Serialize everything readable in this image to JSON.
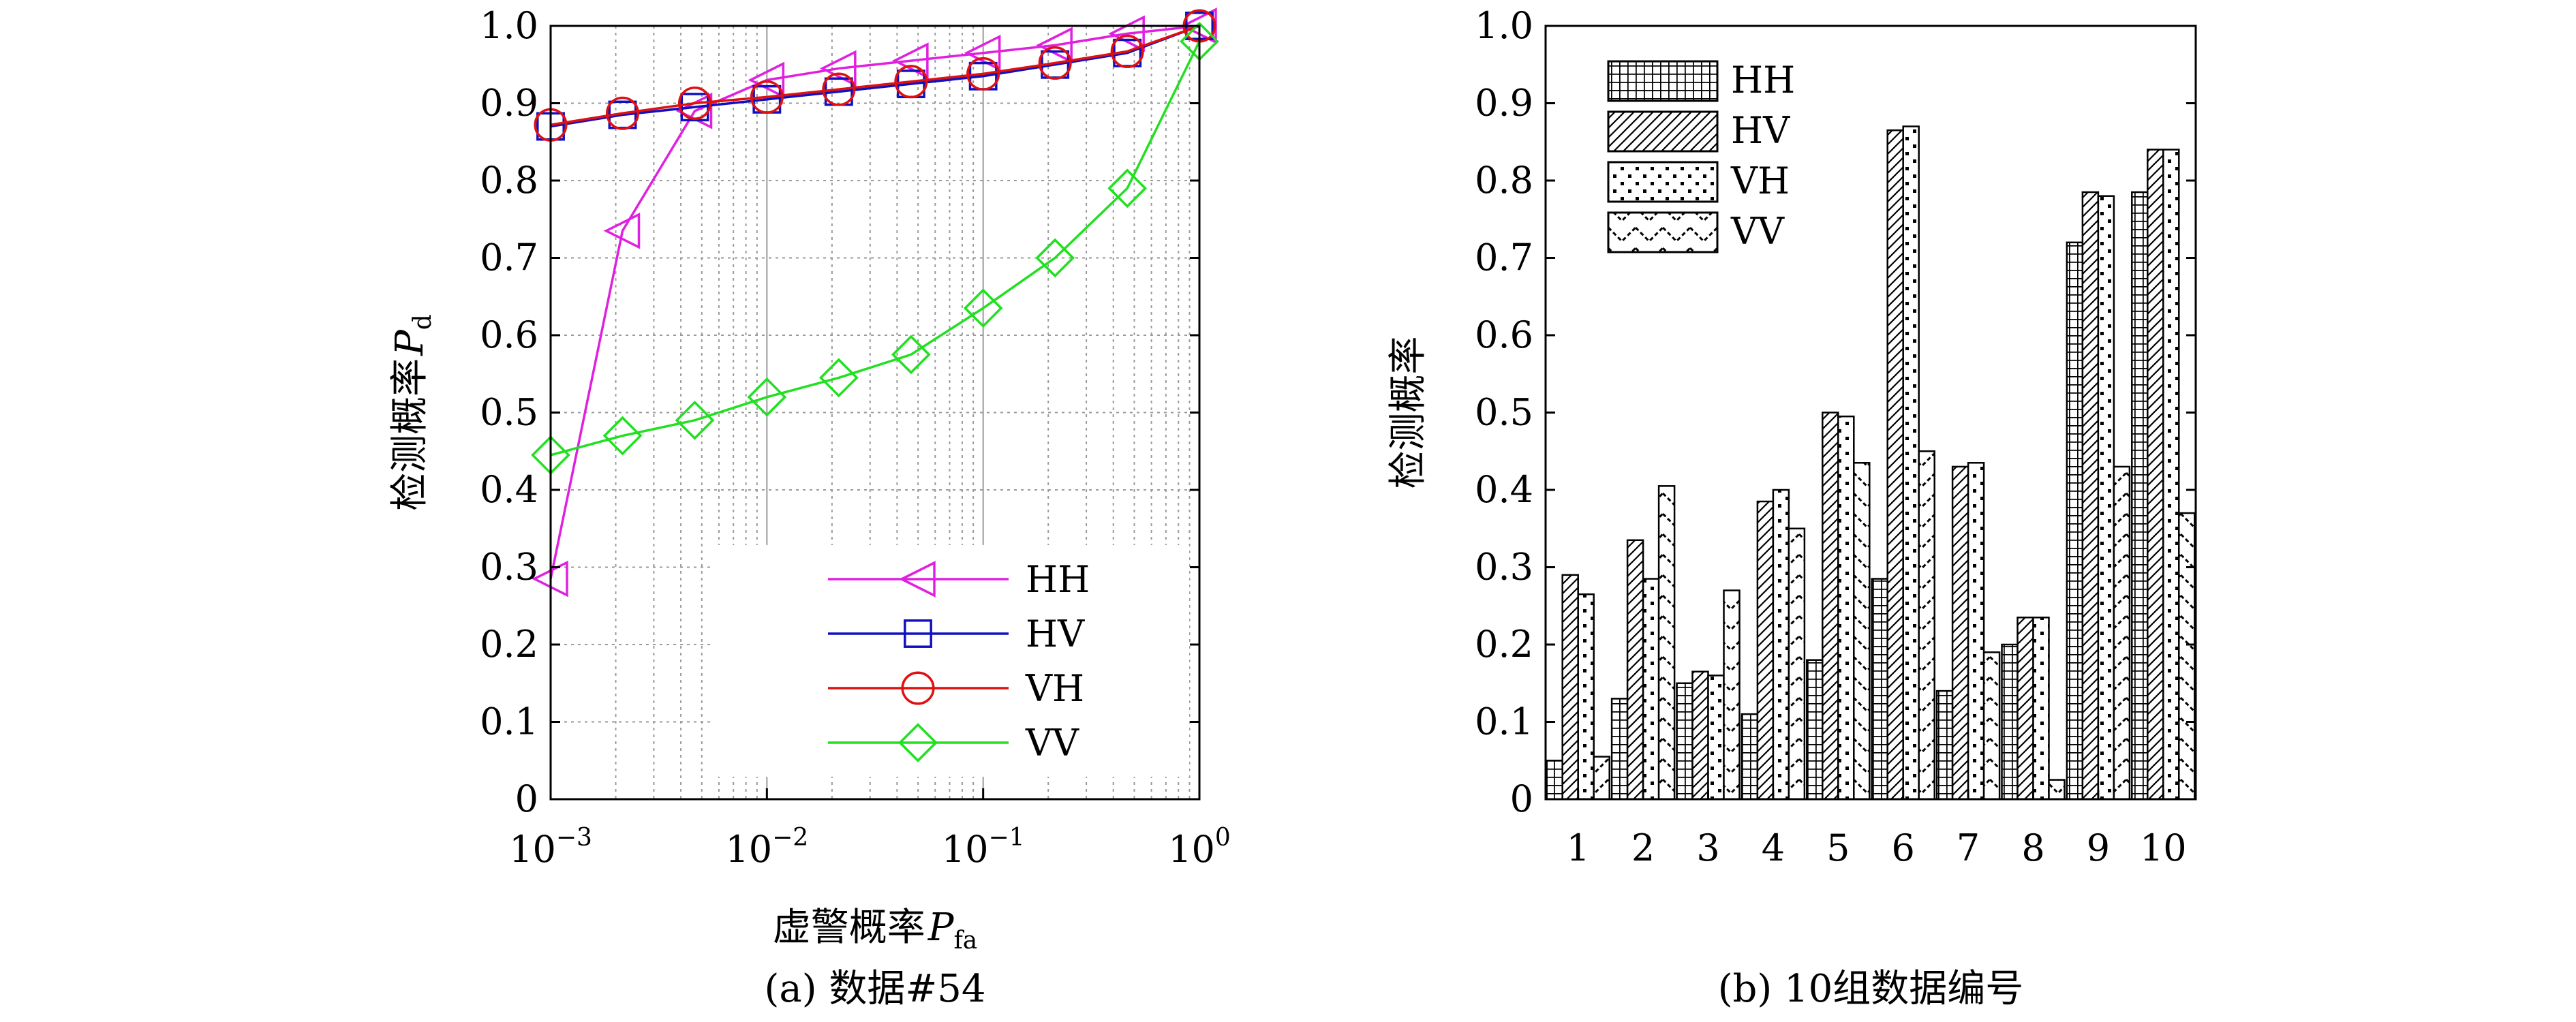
{
  "chart_data": [
    {
      "type": "line",
      "caption": "(a) 数据#54",
      "xlabel": "虚警概率",
      "xlabel_symbol": "P",
      "xlabel_subscript": "fa",
      "ylabel": "检测概率",
      "ylabel_symbol": "P",
      "ylabel_subscript": "d",
      "xscale": "log",
      "xlim": [
        0.001,
        1
      ],
      "ylim": [
        0,
        1
      ],
      "x_ticks": [
        {
          "base": "10",
          "exp": "-3",
          "value": 0.001
        },
        {
          "base": "10",
          "exp": "-2",
          "value": 0.01
        },
        {
          "base": "10",
          "exp": "-1",
          "value": 0.1
        },
        {
          "base": "10",
          "exp": "0",
          "value": 1
        }
      ],
      "y_ticks": [
        "0",
        "0.1",
        "0.2",
        "0.3",
        "0.4",
        "0.5",
        "0.6",
        "0.7",
        "0.8",
        "0.9",
        "1.0"
      ],
      "grid": true,
      "legend_position": "bottom-right",
      "x": [
        0.001,
        0.00215,
        0.00464,
        0.01,
        0.0215,
        0.0464,
        0.1,
        0.215,
        0.464,
        1
      ],
      "series": [
        {
          "name": "HH",
          "color": "#e020e0",
          "marker": "triangle-left",
          "values": [
            0.285,
            0.735,
            0.89,
            0.93,
            0.945,
            0.955,
            0.965,
            0.975,
            0.99,
            1.0
          ]
        },
        {
          "name": "HV",
          "color": "#1010c0",
          "marker": "square",
          "values": [
            0.87,
            0.885,
            0.895,
            0.905,
            0.915,
            0.925,
            0.935,
            0.95,
            0.965,
            1.0
          ]
        },
        {
          "name": "VH",
          "color": "#e01010",
          "marker": "circle",
          "values": [
            0.872,
            0.887,
            0.9,
            0.908,
            0.918,
            0.928,
            0.938,
            0.952,
            0.967,
            1.0
          ]
        },
        {
          "name": "VV",
          "color": "#20e020",
          "marker": "diamond",
          "values": [
            0.445,
            0.47,
            0.49,
            0.52,
            0.545,
            0.575,
            0.635,
            0.7,
            0.79,
            0.98
          ]
        }
      ]
    },
    {
      "type": "bar",
      "caption": "(b) 10组数据编号",
      "xlabel": "",
      "ylabel": "检测概率",
      "ylim": [
        0,
        1
      ],
      "y_ticks": [
        "0",
        "0.1",
        "0.2",
        "0.3",
        "0.4",
        "0.5",
        "0.6",
        "0.7",
        "0.8",
        "0.9",
        "1.0"
      ],
      "categories": [
        "1",
        "2",
        "3",
        "4",
        "5",
        "6",
        "7",
        "8",
        "9",
        "10"
      ],
      "legend_position": "top-left",
      "series": [
        {
          "name": "HH",
          "pattern": "grid",
          "values": [
            0.05,
            0.13,
            0.15,
            0.11,
            0.18,
            0.285,
            0.14,
            0.2,
            0.72,
            0.785
          ]
        },
        {
          "name": "HV",
          "pattern": "diagonal",
          "values": [
            0.29,
            0.335,
            0.165,
            0.385,
            0.5,
            0.865,
            0.43,
            0.235,
            0.785,
            0.84
          ]
        },
        {
          "name": "VH",
          "pattern": "dots",
          "values": [
            0.265,
            0.285,
            0.16,
            0.4,
            0.495,
            0.87,
            0.435,
            0.235,
            0.78,
            0.84
          ]
        },
        {
          "name": "VV",
          "pattern": "zigzag",
          "values": [
            0.055,
            0.405,
            0.27,
            0.35,
            0.435,
            0.45,
            0.19,
            0.025,
            0.43,
            0.37
          ]
        }
      ]
    }
  ]
}
